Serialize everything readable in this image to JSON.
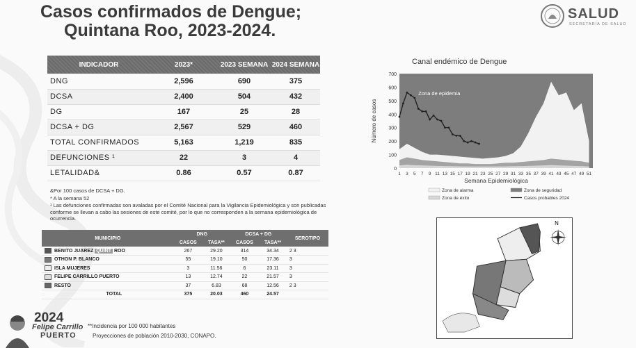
{
  "header": {
    "title_line1": "Casos confirmados de Dengue;",
    "title_line2": "Quintana Roo, 2023-2024.",
    "logo_text": "SALUD",
    "logo_sub": "SECRETARÍA DE SALUD"
  },
  "indicator_table": {
    "headers": [
      "INDICADOR",
      "2023*",
      "2023 SEMANA",
      "2024 SEMANA"
    ],
    "rows": [
      {
        "label": "DNG",
        "v1": "2,596",
        "v2": "690",
        "v3": "375"
      },
      {
        "label": "DCSA",
        "v1": "2,400",
        "v2": "504",
        "v3": "432"
      },
      {
        "label": "DG",
        "v1": "167",
        "v2": "25",
        "v3": "28"
      },
      {
        "label": "DCSA + DG",
        "v1": "2,567",
        "v2": "529",
        "v3": "460"
      },
      {
        "label": "TOTAL CONFIRMADOS",
        "v1": "5,163",
        "v2": "1,219",
        "v3": "835"
      },
      {
        "label": "DEFUNCIONES ¹",
        "v1": "22",
        "v2": "3",
        "v3": "4"
      },
      {
        "label": "LETALIDAD&",
        "v1": "0.86",
        "v2": "0.57",
        "v3": "0.87"
      }
    ]
  },
  "notes": {
    "n1": "&Por 100 casos de DCSA + DG.",
    "n2": "* A la semana 52",
    "n3": "¹ Las defunciones confirmadas son avaladas por el Comité Nacional para la Vigilancia Epidemiológica y son publicadas conforme se llevan a cabo las sesiones de este comité, por lo que no corresponden a la semana epidemiológica de ocurrencia."
  },
  "municipio_table": {
    "h_municipio": "MUNICIPIO",
    "h_dng": "DNG",
    "h_dcsa": "DCSA + DG",
    "h_serotipo": "SEROTIPO",
    "h_casos": "CASOS",
    "h_tasa": "TASA**",
    "rows": [
      {
        "pre": "BENITO JUAREZ ",
        "hl": "QUINT",
        "post": "ROO",
        "c1": "267",
        "t1": "29.20",
        "c2": "314",
        "t2": "34.34",
        "ser": "2   3",
        "swatch": "#555555"
      },
      {
        "pre": "OTHON P. BLANCO",
        "hl": "",
        "post": "",
        "c1": "55",
        "t1": "19.10",
        "c2": "50",
        "t2": "17.36",
        "ser": "3",
        "swatch": "#7a7a7a"
      },
      {
        "pre": "ISLA MUJERES",
        "hl": "",
        "post": "",
        "c1": "3",
        "t1": "11.56",
        "c2": "6",
        "t2": "23.11",
        "ser": "3",
        "swatch": "#eeeeee"
      },
      {
        "pre": "FELIPE CARRILLO PUERTO",
        "hl": "",
        "post": "",
        "c1": "13",
        "t1": "12.74",
        "c2": "22",
        "t2": "21.57",
        "ser": "3",
        "swatch": "#dddddd"
      },
      {
        "pre": "RESTO",
        "hl": "",
        "post": "",
        "c1": "37",
        "t1": "6.83",
        "c2": "68",
        "t2": "12.56",
        "ser": "2   3",
        "swatch": "#666666"
      }
    ],
    "total": {
      "label": "TOTAL",
      "c1": "375",
      "t1": "20.03",
      "c2": "460",
      "t2": "24.57"
    }
  },
  "footer": {
    "incidence_note": "**Incidencia por 100 000 habitantes",
    "source": "Proyecciones de población 2010-2030,  CONAPO.",
    "badge_year": "2024",
    "badge_name1": "Felipe Carrillo",
    "badge_name2": "PUERTO"
  },
  "chart_data": {
    "type": "area",
    "title": "Canal endémico de Dengue",
    "xlabel": "Semana Epidemiológica",
    "ylabel": "Número de casos",
    "ylim": [
      0,
      700
    ],
    "yticks": [
      0,
      100,
      200,
      300,
      400,
      500,
      600,
      700
    ],
    "xticks": [
      "1",
      "3",
      "5",
      "7",
      "9",
      "11",
      "13",
      "15",
      "17",
      "19",
      "21",
      "23",
      "25",
      "27",
      "29",
      "31",
      "33",
      "35",
      "37",
      "39",
      "41",
      "43",
      "45",
      "47",
      "49",
      "51"
    ],
    "annotation": "Zona de epidemia",
    "legend": [
      "Zona de alarma",
      "Zona de seguridad",
      "Zona de éxito",
      "Casos probables 2024"
    ],
    "x": [
      1,
      3,
      5,
      7,
      9,
      11,
      13,
      15,
      17,
      19,
      21,
      23,
      25,
      27,
      29,
      31,
      33,
      35,
      37,
      39,
      41,
      43,
      45,
      47,
      49,
      51
    ],
    "series": [
      {
        "name": "Zona de alarma",
        "values": [
          140,
          180,
          150,
          120,
          100,
          100,
          95,
          90,
          85,
          80,
          75,
          70,
          75,
          80,
          90,
          110,
          160,
          260,
          380,
          480,
          640,
          540,
          560,
          430,
          480,
          200
        ]
      },
      {
        "name": "Zona de seguridad",
        "values": [
          60,
          80,
          70,
          60,
          55,
          50,
          45,
          40,
          35,
          35,
          30,
          30,
          30,
          35,
          40,
          40,
          45,
          50,
          55,
          60,
          70,
          65,
          60,
          55,
          50,
          40
        ]
      },
      {
        "name": "Zona de éxito",
        "values": [
          20,
          25,
          22,
          20,
          18,
          16,
          15,
          14,
          13,
          12,
          12,
          12,
          12,
          12,
          13,
          14,
          15,
          16,
          18,
          20,
          22,
          20,
          18,
          16,
          15,
          12
        ]
      }
    ],
    "line_series": {
      "name": "Casos probables 2024",
      "x": [
        1,
        2,
        3,
        4,
        5,
        6,
        7,
        8,
        9,
        10,
        11,
        12,
        13,
        14,
        15,
        16,
        17,
        18,
        19,
        20,
        21,
        22
      ],
      "values": [
        380,
        480,
        560,
        540,
        520,
        440,
        420,
        420,
        360,
        390,
        360,
        350,
        300,
        300,
        250,
        240,
        240,
        200,
        190,
        200,
        190,
        180
      ]
    }
  }
}
